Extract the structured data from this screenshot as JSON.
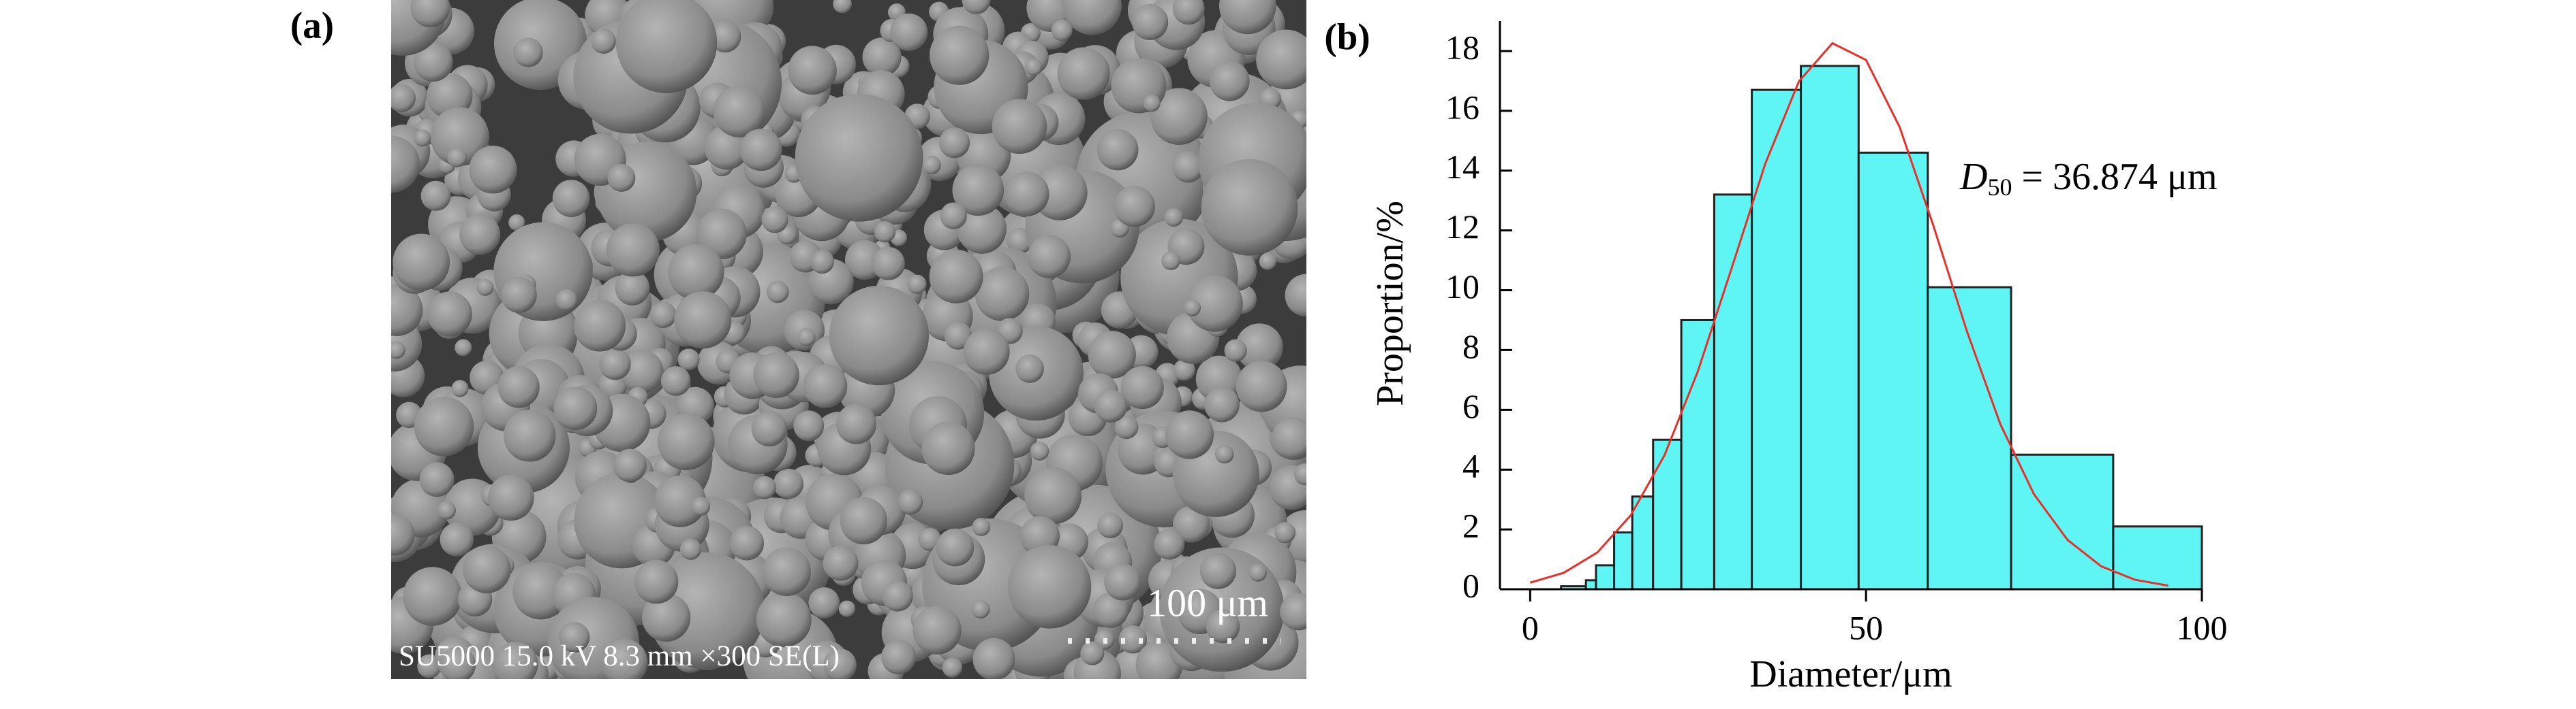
{
  "panel_a": {
    "label": "(a)",
    "info": "SU5000 15.0 kV 8.3 mm ×300 SE(L)",
    "scale_bar": "100 μm"
  },
  "chart_data": {
    "type": "histogram",
    "label": "(b)",
    "x_label": "Diameter/μm",
    "y_label": "Proportion/%",
    "annotation": {
      "symbol": "D",
      "subscript": "50",
      "text": " = 36.874 μm"
    },
    "bins": [
      4.6,
      8.3,
      9.8,
      12.5,
      15.2,
      18.3,
      22.5,
      27.4,
      33,
      40.3,
      48.9,
      59.2,
      71.6,
      86.8,
      100
    ],
    "values": [
      0.1,
      0.3,
      0.8,
      1.9,
      3.1,
      5.0,
      9.0,
      13.2,
      16.7,
      17.5,
      14.6,
      10.1,
      4.5,
      2.1
    ],
    "color": "#5ff5f5",
    "edge_color": "#222222",
    "fit": {
      "type": "line",
      "color": "#e8302a",
      "x": [
        0,
        5,
        10,
        15,
        20,
        25,
        30,
        35,
        40,
        45,
        50,
        55,
        60,
        65,
        70,
        75,
        80,
        85,
        90,
        95
      ],
      "values": [
        0.22,
        0.55,
        1.23,
        2.48,
        4.48,
        7.31,
        10.74,
        14.23,
        16.98,
        18.26,
        17.7,
        15.46,
        12.18,
        8.64,
        5.52,
        3.18,
        1.65,
        0.77,
        0.32,
        0.12
      ]
    },
    "xlim": [
      -4.5,
      100
    ],
    "ylim": [
      0,
      19
    ],
    "xticks": [
      0,
      50,
      100
    ],
    "yticks": [
      0,
      2,
      4,
      6,
      8,
      10,
      12,
      14,
      16,
      18
    ]
  }
}
